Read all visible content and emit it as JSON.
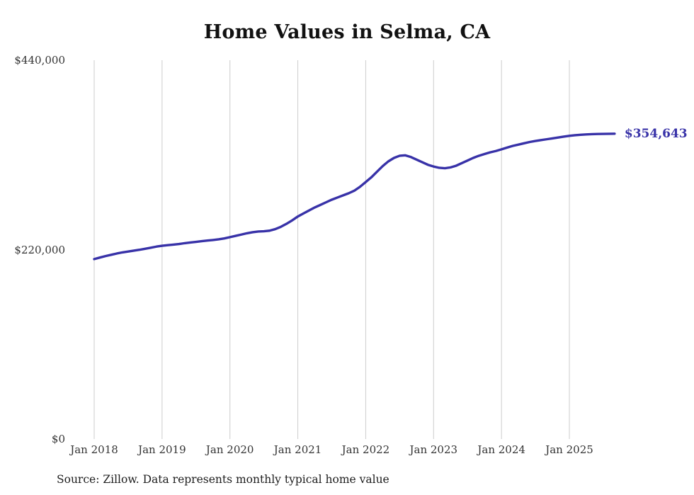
{
  "page": {
    "background": "#ffffff"
  },
  "chart_data": {
    "type": "line",
    "title": "Home Values in Selma, CA",
    "source_note": "Source: Zillow. Data represents monthly typical home value",
    "end_label": "$354,643",
    "final_value": 354643,
    "line_color": "#3832a8",
    "grid_color": "#cccccc",
    "text_color": "#333333",
    "ylabel": "",
    "xlabel": "",
    "ylim": [
      0,
      440000
    ],
    "grid": "vertical-only",
    "legend": "none",
    "y_ticks": [
      {
        "value": 0,
        "label": "$0"
      },
      {
        "value": 220000,
        "label": "$220,000"
      },
      {
        "value": 440000,
        "label": "$440,000"
      }
    ],
    "x_ticks": [
      {
        "month_index": 0,
        "label": "Jan 2018"
      },
      {
        "month_index": 12,
        "label": "Jan 2019"
      },
      {
        "month_index": 24,
        "label": "Jan 2020"
      },
      {
        "month_index": 36,
        "label": "Jan 2021"
      },
      {
        "month_index": 48,
        "label": "Jan 2022"
      },
      {
        "month_index": 60,
        "label": "Jan 2023"
      },
      {
        "month_index": 72,
        "label": "Jan 2024"
      },
      {
        "month_index": 84,
        "label": "Jan 2025"
      }
    ],
    "x": [
      "Jan 2018",
      "Feb 2018",
      "Mar 2018",
      "Apr 2018",
      "May 2018",
      "Jun 2018",
      "Jul 2018",
      "Aug 2018",
      "Sep 2018",
      "Oct 2018",
      "Nov 2018",
      "Dec 2018",
      "Jan 2019",
      "Feb 2019",
      "Mar 2019",
      "Apr 2019",
      "May 2019",
      "Jun 2019",
      "Jul 2019",
      "Aug 2019",
      "Sep 2019",
      "Oct 2019",
      "Nov 2019",
      "Dec 2019",
      "Jan 2020",
      "Feb 2020",
      "Mar 2020",
      "Apr 2020",
      "May 2020",
      "Jun 2020",
      "Jul 2020",
      "Aug 2020",
      "Sep 2020",
      "Oct 2020",
      "Nov 2020",
      "Dec 2020",
      "Jan 2021",
      "Feb 2021",
      "Mar 2021",
      "Apr 2021",
      "May 2021",
      "Jun 2021",
      "Jul 2021",
      "Aug 2021",
      "Sep 2021",
      "Oct 2021",
      "Nov 2021",
      "Dec 2021",
      "Jan 2022",
      "Feb 2022",
      "Mar 2022",
      "Apr 2022",
      "May 2022",
      "Jun 2022",
      "Jul 2022",
      "Aug 2022",
      "Sep 2022",
      "Oct 2022",
      "Nov 2022",
      "Dec 2022",
      "Jan 2023",
      "Feb 2023",
      "Mar 2023",
      "Apr 2023",
      "May 2023",
      "Jun 2023",
      "Jul 2023",
      "Aug 2023",
      "Sep 2023",
      "Oct 2023",
      "Nov 2023",
      "Dec 2023",
      "Jan 2024",
      "Feb 2024",
      "Mar 2024",
      "Apr 2024",
      "May 2024",
      "Jun 2024",
      "Jul 2024",
      "Aug 2024",
      "Sep 2024",
      "Oct 2024",
      "Nov 2024",
      "Dec 2024",
      "Jan 2025",
      "Feb 2025",
      "Mar 2025",
      "Apr 2025",
      "May 2025",
      "Jun 2025",
      "Jul 2025",
      "Aug 2025",
      "Sep 2025"
    ],
    "values": [
      209000,
      210800,
      212500,
      214000,
      215500,
      216800,
      217800,
      218800,
      219800,
      221000,
      222200,
      223500,
      224500,
      225200,
      225800,
      226500,
      227500,
      228300,
      229000,
      229800,
      230500,
      231200,
      232000,
      233000,
      234500,
      236000,
      237500,
      239000,
      240200,
      241000,
      241300,
      242000,
      243800,
      246500,
      250000,
      254000,
      258500,
      262000,
      265500,
      269000,
      272000,
      275000,
      278000,
      280500,
      283000,
      285500,
      288500,
      293000,
      298500,
      304000,
      310500,
      317000,
      322500,
      326500,
      329000,
      329500,
      327500,
      324500,
      321500,
      318500,
      316500,
      315000,
      314500,
      315500,
      317500,
      320500,
      323500,
      326500,
      329000,
      331000,
      333000,
      334500,
      336500,
      338500,
      340500,
      342000,
      343500,
      345000,
      346200,
      347200,
      348200,
      349200,
      350200,
      351200,
      352200,
      352900,
      353400,
      353800,
      354100,
      354300,
      354450,
      354550,
      354643
    ]
  }
}
